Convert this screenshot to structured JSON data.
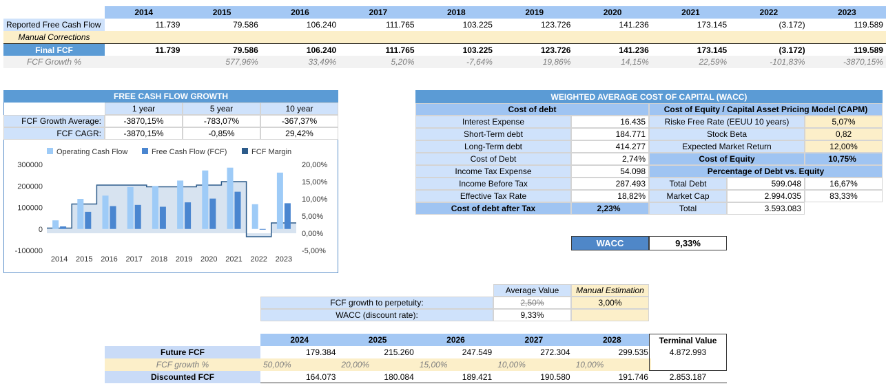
{
  "top_table": {
    "years": [
      "2014",
      "2015",
      "2016",
      "2017",
      "2018",
      "2019",
      "2020",
      "2021",
      "2022",
      "2023"
    ],
    "rows": [
      {
        "label": "Reported Free Cash Flow",
        "values": [
          "11.739",
          "79.586",
          "106.240",
          "111.765",
          "103.225",
          "123.726",
          "141.236",
          "173.145",
          "(3.172)",
          "119.589"
        ]
      },
      {
        "label": "Manual Corrections",
        "values": [
          "",
          "",
          "",
          "",
          "",
          "",
          "",
          "",
          "",
          ""
        ]
      },
      {
        "label": "Final FCF",
        "values": [
          "11.739",
          "79.586",
          "106.240",
          "111.765",
          "103.225",
          "123.726",
          "141.236",
          "173.145",
          "(3.172)",
          "119.589"
        ]
      },
      {
        "label": "FCF Growth %",
        "values": [
          "",
          "577,96%",
          "33,49%",
          "5,20%",
          "-7,64%",
          "19,86%",
          "14,15%",
          "22,59%",
          "-101,83%",
          "-3870,15%"
        ]
      }
    ]
  },
  "growth_box": {
    "title": "FREE CASH FLOW GROWTH",
    "headers": [
      "1 year",
      "5 year",
      "10 year"
    ],
    "rows": [
      {
        "label": "FCF Growth Average:",
        "values": [
          "-3870,15%",
          "-783,07%",
          "-367,37%"
        ]
      },
      {
        "label": "FCF CAGR:",
        "values": [
          "-3870,15%",
          "-0,85%",
          "29,42%"
        ]
      }
    ]
  },
  "chart_data": {
    "type": "bar",
    "legend": [
      "Operating Cash Flow",
      "Free Cash Flow (FCF)",
      "FCF Margin"
    ],
    "legend_position": "top",
    "categories": [
      "2014",
      "2015",
      "2016",
      "2017",
      "2018",
      "2019",
      "2020",
      "2021",
      "2022",
      "2023"
    ],
    "series": [
      {
        "name": "Operating Cash Flow",
        "axis": "left",
        "values": [
          40000,
          140000,
          155000,
          195000,
          200000,
          225000,
          272000,
          285000,
          115000,
          262000
        ]
      },
      {
        "name": "Free Cash Flow (FCF)",
        "axis": "left",
        "values": [
          11739,
          79586,
          106240,
          111765,
          103225,
          123726,
          141236,
          173145,
          -3172,
          119589
        ]
      },
      {
        "name": "FCF Margin",
        "axis": "right",
        "type": "step-area",
        "values": [
          1.5,
          8.5,
          14.0,
          14.0,
          13.5,
          13.5,
          14.0,
          15.0,
          -1.0,
          3.0
        ]
      }
    ],
    "left_axis": {
      "ticks": [
        "300000",
        "200000",
        "100000",
        "0",
        "-100000"
      ],
      "range": [
        -100000,
        300000
      ]
    },
    "right_axis": {
      "ticks": [
        "20,00%",
        "15,00%",
        "10,00%",
        "5,00%",
        "0,00%",
        "-5,00%"
      ],
      "range": [
        -5,
        20
      ]
    },
    "colors": {
      "ocf": "#9ecbf7",
      "fcf": "#4a86d0",
      "margin_fill": "#d7e3f0",
      "margin_line": "#2c5b8a"
    }
  },
  "wacc_box": {
    "title": "WEIGHTED AVERAGE COST OF CAPITAL (WACC)",
    "debt_header": "Cost of debt",
    "debt_rows": [
      {
        "label": "Interest Expense",
        "value": "16.435"
      },
      {
        "label": "Short-Term debt",
        "value": "184.771"
      },
      {
        "label": "Long-Term debt",
        "value": "414.277"
      },
      {
        "label": "Cost of Debt",
        "value": "2,74%"
      },
      {
        "label": "Income Tax Expense",
        "value": "54.098"
      },
      {
        "label": "Income Before Tax",
        "value": "287.493"
      },
      {
        "label": "Effective Tax Rate",
        "value": "18,82%"
      }
    ],
    "debt_after_tax": {
      "label": "Cost of debt after Tax",
      "value": "2,23%"
    },
    "equity_header": "Cost of Equity / Capital Asset Pricing Model (CAPM)",
    "equity_rows": [
      {
        "label": "Riske Free Rate (EEUU 10 years)",
        "value": "5,07%"
      },
      {
        "label": "Stock Beta",
        "value": "0,82"
      },
      {
        "label": "Expected Market Return",
        "value": "12,00%"
      }
    ],
    "cost_of_equity": {
      "label": "Cost of Equity",
      "value": "10,75%"
    },
    "pct_header": "Percentage of Debt vs. Equity",
    "pct_rows": [
      {
        "label": "Total Debt",
        "value": "599.048",
        "pct": "16,67%"
      },
      {
        "label": "Market Cap",
        "value": "2.994.035",
        "pct": "83,33%"
      },
      {
        "label": "Total",
        "value": "3.593.083",
        "pct": ""
      }
    ]
  },
  "wacc_result": {
    "label": "WACC",
    "value": "9,33%"
  },
  "perpetuity": {
    "col_headers": [
      "Average Value",
      "Manual Estimation"
    ],
    "rows": [
      {
        "label": "FCF growth to perpetuity:",
        "avg": "2,50%",
        "manual": "3,00%"
      },
      {
        "label": "WACC (discount rate):",
        "avg": "9,33%",
        "manual": ""
      }
    ]
  },
  "future": {
    "years": [
      "2024",
      "2025",
      "2026",
      "2027",
      "2028"
    ],
    "terminal_header": "Terminal Value",
    "future_fcf": {
      "label": "Future FCF",
      "values": [
        "179.384",
        "215.260",
        "247.549",
        "272.304",
        "299.535"
      ],
      "terminal": "4.872.993"
    },
    "growth": {
      "label": "FCF growth %",
      "values": [
        "50,00%",
        "20,00%",
        "15,00%",
        "10,00%",
        "10,00%"
      ]
    },
    "discounted": {
      "label": "Discounted FCF",
      "values": [
        "164.073",
        "180.084",
        "189.421",
        "190.580",
        "191.746"
      ],
      "terminal": "2.853.187"
    }
  }
}
